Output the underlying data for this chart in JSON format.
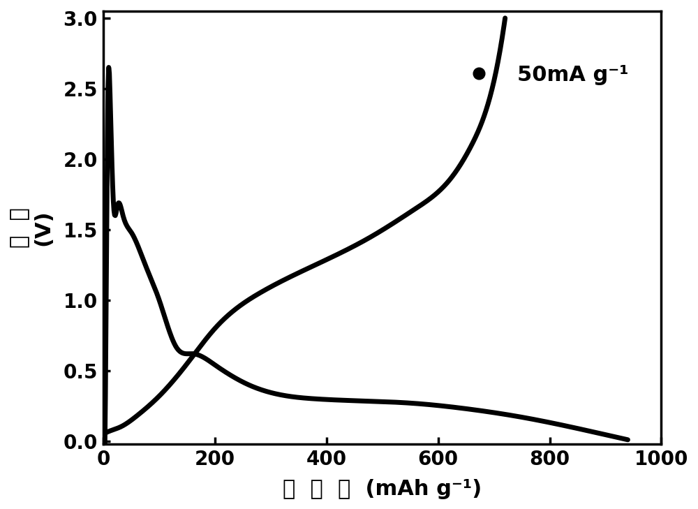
{
  "title": "",
  "xlabel_chinese": "比  容  量",
  "xlabel_units": "(mAh g⁻¹)",
  "ylabel_chinese": "电  压",
  "ylabel_units": "(V)",
  "xlim": [
    0,
    1000
  ],
  "ylim": [
    -0.02,
    3.05
  ],
  "xticks": [
    0,
    200,
    400,
    600,
    800,
    1000
  ],
  "yticks": [
    0.0,
    0.5,
    1.0,
    1.5,
    2.0,
    2.5,
    3.0
  ],
  "legend_label": "50mA g⁻¹",
  "line_color": "#000000",
  "line_width": 5.0,
  "background_color": "#ffffff",
  "font_size_label": 22,
  "font_size_tick": 20,
  "font_size_legend": 22
}
